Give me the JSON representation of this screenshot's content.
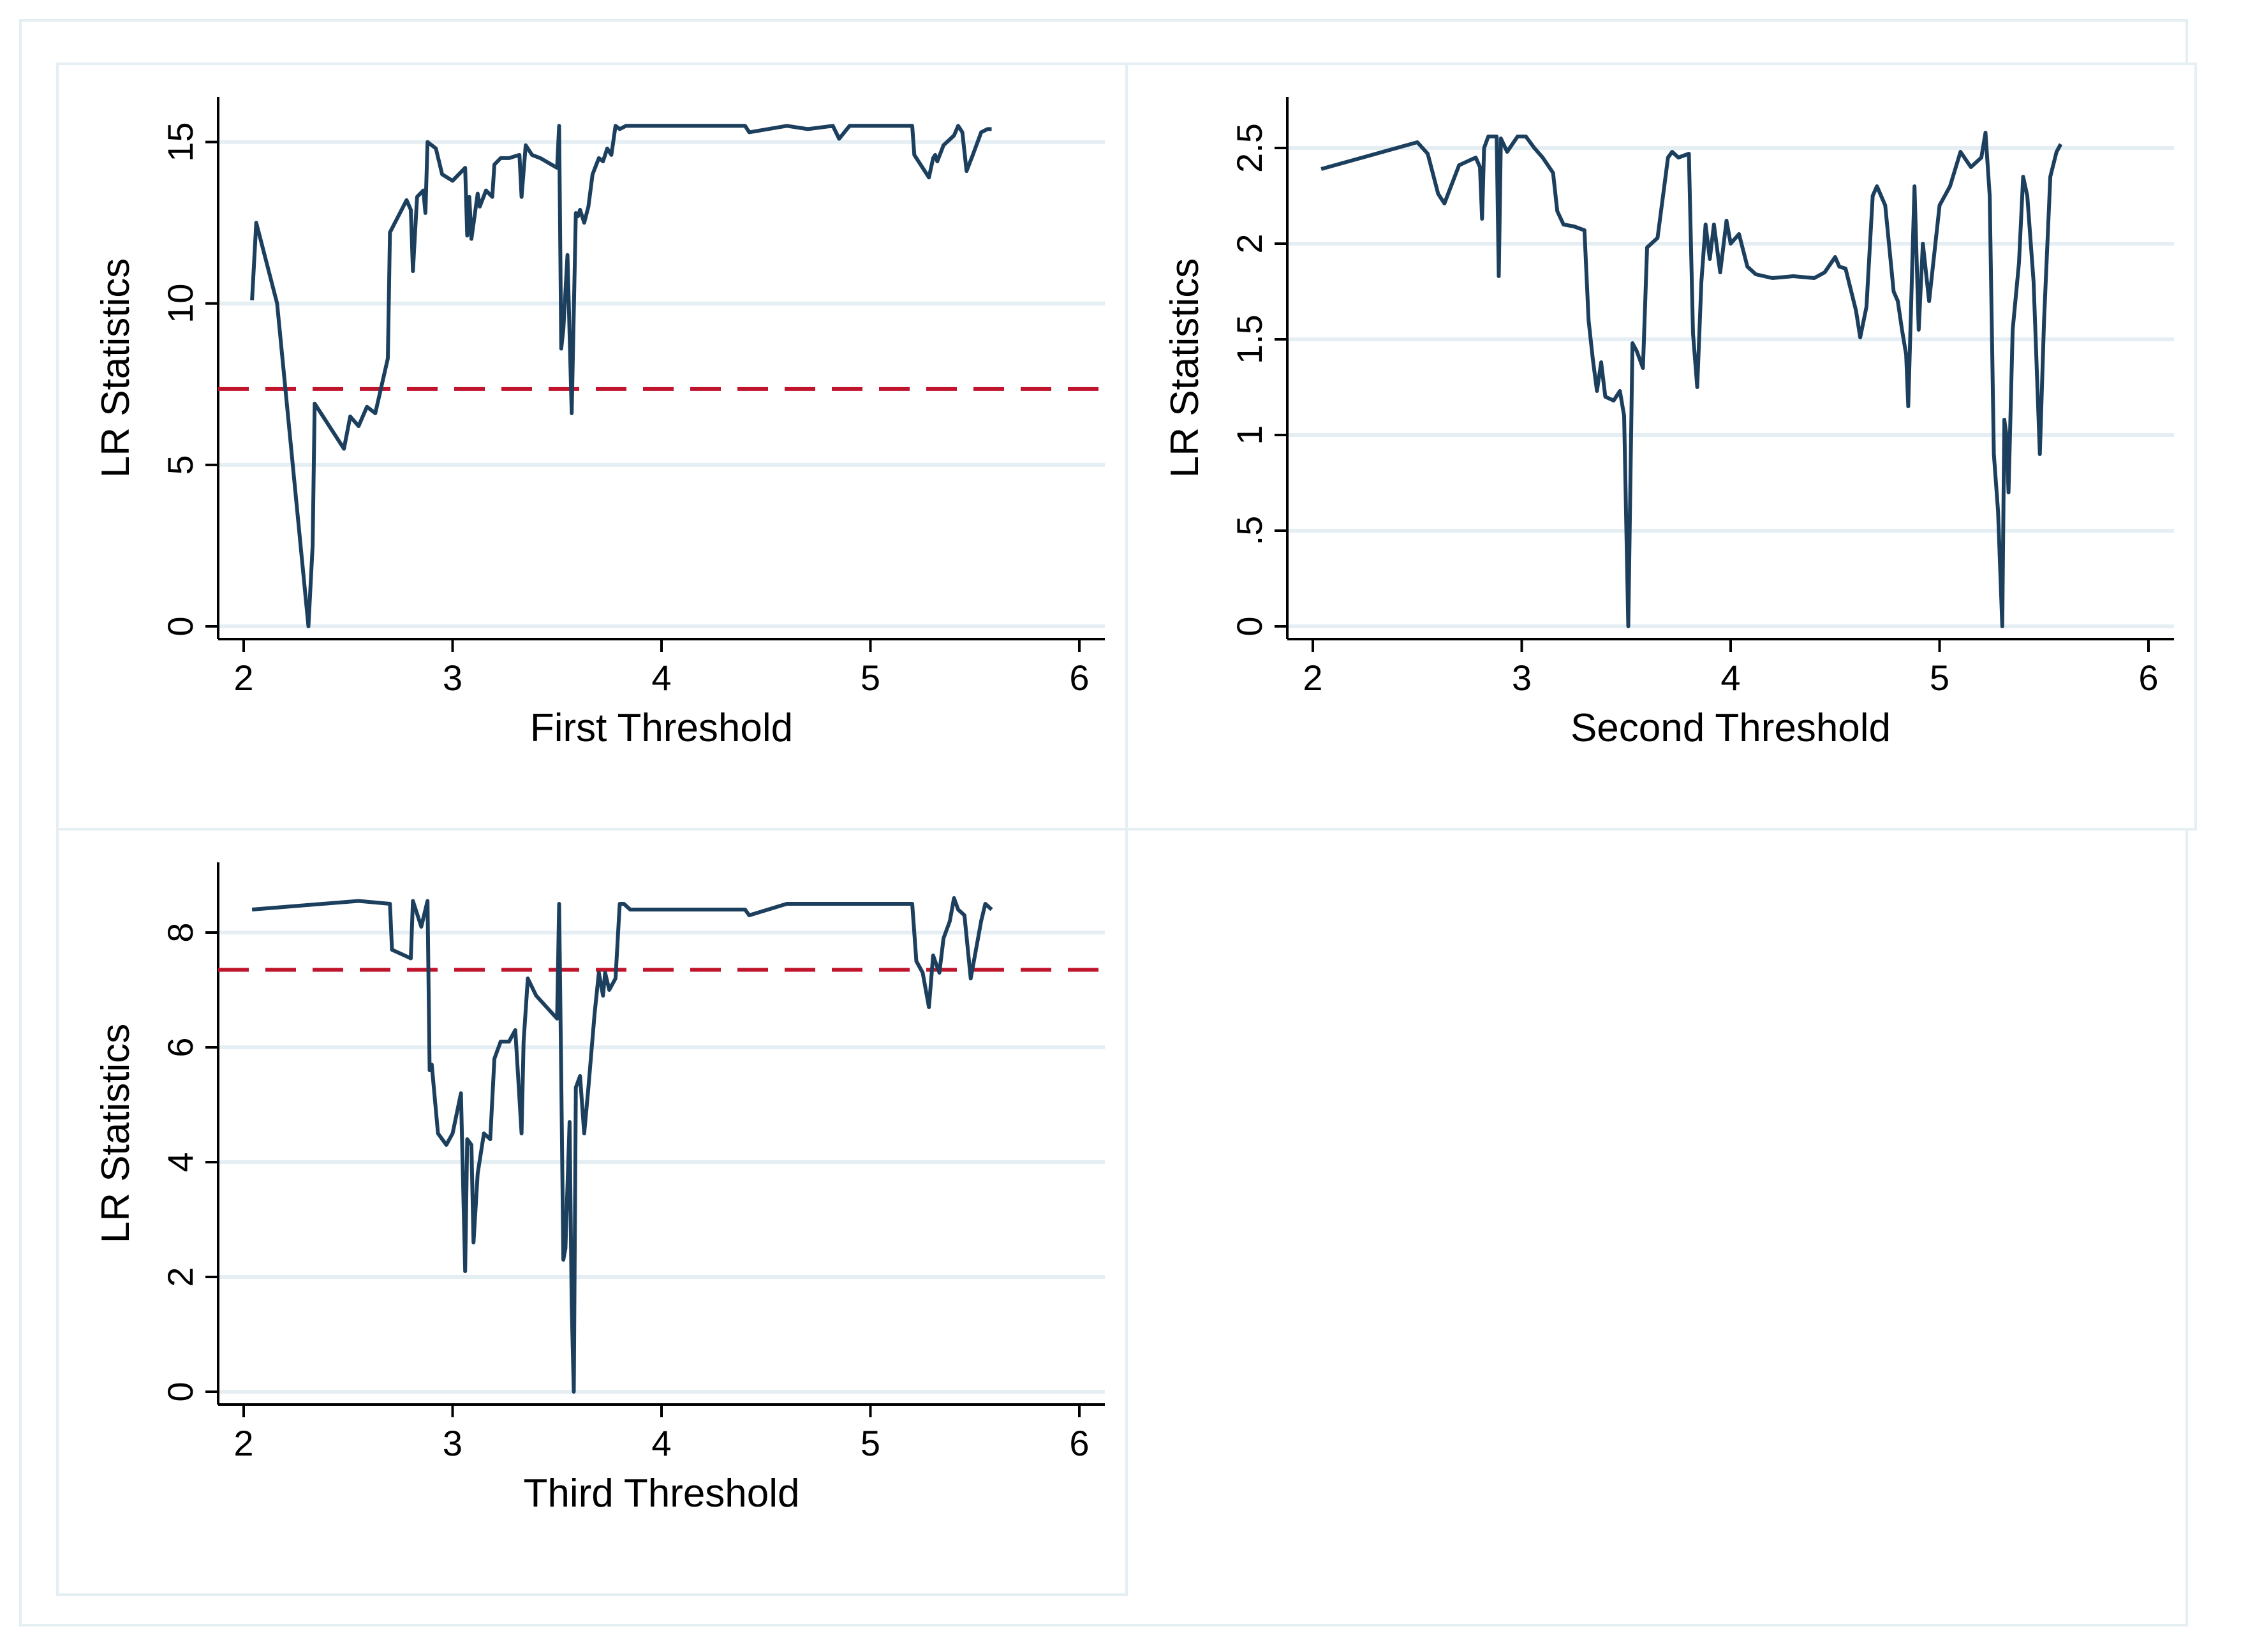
{
  "chart_data": [
    {
      "type": "line",
      "xlabel": "First Threshold",
      "ylabel": "LR Statistics",
      "xlim": [
        2,
        6
      ],
      "xticks": [
        2,
        3,
        4,
        5,
        6
      ],
      "ylim": [
        0,
        16
      ],
      "yticks": [
        0,
        5,
        10,
        15
      ],
      "ytick_labels": [
        "0",
        "5",
        "10",
        "15"
      ],
      "critical_value": 7.35,
      "series": [
        {
          "name": "LR",
          "x": [
            2.04,
            2.06,
            2.16,
            2.31,
            2.33,
            2.34,
            2.48,
            2.51,
            2.55,
            2.59,
            2.63,
            2.69,
            2.7,
            2.78,
            2.8,
            2.81,
            2.83,
            2.86,
            2.87,
            2.88,
            2.92,
            2.95,
            3.0,
            3.06,
            3.07,
            3.08,
            3.09,
            3.12,
            3.13,
            3.16,
            3.19,
            3.2,
            3.23,
            3.27,
            3.32,
            3.33,
            3.35,
            3.38,
            3.42,
            3.5,
            3.51,
            3.52,
            3.53,
            3.55,
            3.57,
            3.59,
            3.6,
            3.61,
            3.63,
            3.65,
            3.67,
            3.7,
            3.72,
            3.74,
            3.76,
            3.78,
            3.8,
            3.83,
            3.9,
            4.0,
            4.1,
            4.2,
            4.4,
            4.42,
            4.6,
            4.7,
            4.82,
            4.85,
            4.9,
            5.0,
            5.1,
            5.2,
            5.21,
            5.22,
            5.25,
            5.28,
            5.3,
            5.31,
            5.32,
            5.35,
            5.4,
            5.42,
            5.44,
            5.46,
            5.49,
            5.53,
            5.56,
            5.58
          ],
          "y": [
            10.1,
            12.5,
            10.0,
            0.0,
            2.5,
            6.9,
            5.5,
            6.5,
            6.2,
            6.8,
            6.6,
            8.3,
            12.2,
            13.2,
            12.9,
            11.0,
            13.3,
            13.5,
            12.8,
            15.0,
            14.8,
            14.0,
            13.8,
            14.2,
            12.1,
            13.3,
            12.0,
            13.4,
            13.0,
            13.5,
            13.3,
            14.3,
            14.5,
            14.5,
            14.6,
            13.3,
            14.9,
            14.6,
            14.5,
            14.2,
            15.5,
            8.6,
            9.2,
            11.5,
            6.6,
            12.8,
            12.7,
            12.9,
            12.5,
            13.0,
            14.0,
            14.5,
            14.4,
            14.8,
            14.6,
            15.5,
            15.4,
            15.5,
            15.5,
            15.5,
            15.5,
            15.5,
            15.5,
            15.3,
            15.5,
            15.4,
            15.5,
            15.1,
            15.5,
            15.5,
            15.5,
            15.5,
            14.6,
            14.5,
            14.2,
            13.9,
            14.5,
            14.6,
            14.4,
            14.9,
            15.2,
            15.5,
            15.3,
            14.1,
            14.6,
            15.3,
            15.4,
            15.4
          ]
        }
      ]
    },
    {
      "type": "line",
      "xlabel": "Second Threshold",
      "ylabel": "LR Statistics",
      "xlim": [
        2,
        6
      ],
      "xticks": [
        2,
        3,
        4,
        5,
        6
      ],
      "ylim": [
        0,
        2.7
      ],
      "yticks": [
        0,
        0.5,
        1,
        1.5,
        2,
        2.5
      ],
      "ytick_labels": [
        "0",
        ".5",
        "1",
        "1.5",
        "2",
        "2.5"
      ],
      "series": [
        {
          "name": "LR",
          "x": [
            2.04,
            2.5,
            2.55,
            2.6,
            2.63,
            2.7,
            2.78,
            2.8,
            2.81,
            2.82,
            2.84,
            2.88,
            2.89,
            2.9,
            2.93,
            2.98,
            3.02,
            3.06,
            3.1,
            3.15,
            3.17,
            3.2,
            3.25,
            3.3,
            3.32,
            3.34,
            3.36,
            3.38,
            3.4,
            3.44,
            3.47,
            3.49,
            3.51,
            3.53,
            3.55,
            3.58,
            3.6,
            3.65,
            3.7,
            3.72,
            3.75,
            3.8,
            3.82,
            3.84,
            3.86,
            3.88,
            3.9,
            3.92,
            3.95,
            3.98,
            4.0,
            4.04,
            4.08,
            4.12,
            4.2,
            4.3,
            4.4,
            4.45,
            4.5,
            4.52,
            4.55,
            4.6,
            4.62,
            4.65,
            4.68,
            4.7,
            4.74,
            4.78,
            4.8,
            4.82,
            4.84,
            4.85,
            4.88,
            4.9,
            4.92,
            4.95,
            5.0,
            5.05,
            5.1,
            5.15,
            5.2,
            5.22,
            5.24,
            5.26,
            5.28,
            5.3,
            5.31,
            5.32,
            5.33,
            5.35,
            5.38,
            5.4,
            5.42,
            5.45,
            5.48,
            5.5,
            5.53,
            5.56,
            5.58
          ],
          "y": [
            2.39,
            2.53,
            2.47,
            2.26,
            2.21,
            2.41,
            2.45,
            2.4,
            2.13,
            2.5,
            2.56,
            2.56,
            1.83,
            2.55,
            2.48,
            2.56,
            2.56,
            2.5,
            2.45,
            2.37,
            2.17,
            2.1,
            2.09,
            2.07,
            1.6,
            1.4,
            1.23,
            1.38,
            1.2,
            1.18,
            1.23,
            1.1,
            0.0,
            1.48,
            1.44,
            1.35,
            1.98,
            2.03,
            2.45,
            2.48,
            2.45,
            2.47,
            1.53,
            1.25,
            1.8,
            2.1,
            1.92,
            2.1,
            1.85,
            2.12,
            2.0,
            2.05,
            1.88,
            1.84,
            1.82,
            1.83,
            1.82,
            1.85,
            1.93,
            1.88,
            1.87,
            1.65,
            1.51,
            1.67,
            2.25,
            2.3,
            2.2,
            1.75,
            1.7,
            1.55,
            1.42,
            1.15,
            2.3,
            1.55,
            2.0,
            1.7,
            2.2,
            2.3,
            2.48,
            2.4,
            2.45,
            2.58,
            2.25,
            0.9,
            0.6,
            0.0,
            1.08,
            1.0,
            0.7,
            1.55,
            1.9,
            2.35,
            2.25,
            1.8,
            0.9,
            1.6,
            2.35,
            2.48,
            2.52
          ]
        }
      ]
    },
    {
      "type": "line",
      "xlabel": "Third Threshold",
      "ylabel": "LR Statistics",
      "xlim": [
        2,
        6
      ],
      "xticks": [
        2,
        3,
        4,
        5,
        6
      ],
      "ylim": [
        0,
        9
      ],
      "yticks": [
        0,
        2,
        4,
        6,
        8
      ],
      "ytick_labels": [
        "0",
        "2",
        "4",
        "6",
        "8"
      ],
      "critical_value": 7.35,
      "series": [
        {
          "name": "LR",
          "x": [
            2.04,
            2.55,
            2.7,
            2.71,
            2.8,
            2.81,
            2.85,
            2.88,
            2.89,
            2.9,
            2.93,
            2.97,
            3.0,
            3.04,
            3.06,
            3.07,
            3.09,
            3.1,
            3.12,
            3.15,
            3.18,
            3.2,
            3.23,
            3.27,
            3.3,
            3.33,
            3.34,
            3.36,
            3.4,
            3.5,
            3.51,
            3.52,
            3.53,
            3.54,
            3.56,
            3.57,
            3.58,
            3.59,
            3.6,
            3.61,
            3.63,
            3.65,
            3.68,
            3.7,
            3.72,
            3.73,
            3.75,
            3.78,
            3.8,
            3.82,
            3.85,
            4.0,
            4.2,
            4.4,
            4.42,
            4.6,
            4.8,
            5.0,
            5.2,
            5.22,
            5.25,
            5.28,
            5.3,
            5.31,
            5.33,
            5.35,
            5.38,
            5.4,
            5.42,
            5.45,
            5.48,
            5.5,
            5.53,
            5.55,
            5.58
          ],
          "y": [
            8.4,
            8.55,
            8.5,
            7.7,
            7.55,
            8.55,
            8.1,
            8.55,
            5.6,
            5.7,
            4.5,
            4.3,
            4.5,
            5.2,
            2.1,
            4.4,
            4.3,
            2.6,
            3.8,
            4.5,
            4.4,
            5.8,
            6.1,
            6.1,
            6.3,
            4.5,
            6.1,
            7.2,
            6.9,
            6.5,
            8.5,
            5.5,
            2.3,
            2.5,
            4.7,
            1.5,
            0.0,
            5.3,
            5.4,
            5.5,
            4.5,
            5.3,
            6.6,
            7.3,
            6.9,
            7.3,
            7.0,
            7.2,
            8.5,
            8.5,
            8.4,
            8.4,
            8.4,
            8.4,
            8.3,
            8.5,
            8.5,
            8.5,
            8.5,
            7.5,
            7.3,
            6.7,
            7.6,
            7.5,
            7.3,
            7.9,
            8.2,
            8.6,
            8.4,
            8.3,
            7.2,
            7.6,
            8.2,
            8.5,
            8.4
          ]
        }
      ]
    }
  ]
}
